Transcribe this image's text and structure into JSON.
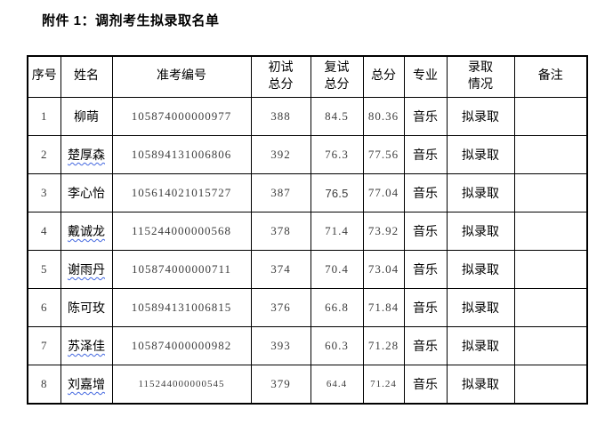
{
  "page": {
    "title": "附件 1：调剂考生拟录取名单",
    "background": "#ffffff"
  },
  "colors": {
    "misspell_underline": "#4468e0",
    "border": "#000000",
    "heading_text": "#000000",
    "number_text": "#3d3d3d"
  },
  "table": {
    "columns": [
      "序号",
      "姓名",
      "准考编号",
      "初试\n总分",
      "复试\n总分",
      "总分",
      "专业",
      "录取\n情况",
      "备注"
    ],
    "rows": [
      {
        "no": "1",
        "name": "柳萌",
        "ticket": "105874000000977",
        "initial": "388",
        "retest": "84.5",
        "total": "80.36",
        "major": "音乐",
        "status": "拟录取",
        "remark": "",
        "wavy": false
      },
      {
        "no": "2",
        "name": "楚厚森",
        "ticket": "105894131006806",
        "initial": "392",
        "retest": "76.3",
        "total": "77.56",
        "major": "音乐",
        "status": "拟录取",
        "remark": "",
        "wavy": true
      },
      {
        "no": "3",
        "name": "李心怡",
        "ticket": "105614021015727",
        "initial": "387",
        "retest": "76.5",
        "total": "77.04",
        "major": "音乐",
        "status": "拟录取",
        "remark": "",
        "wavy": false,
        "alt_cells": [
          "retest"
        ]
      },
      {
        "no": "4",
        "name": "戴诚龙",
        "ticket": "115244000000568",
        "initial": "378",
        "retest": "71.4",
        "total": "73.92",
        "major": "音乐",
        "status": "拟录取",
        "remark": "",
        "wavy": true
      },
      {
        "no": "5",
        "name": "谢雨丹",
        "ticket": "105874000000711",
        "initial": "374",
        "retest": "70.4",
        "total": "73.04",
        "major": "音乐",
        "status": "拟录取",
        "remark": "",
        "wavy": true
      },
      {
        "no": "6",
        "name": "陈可玫",
        "ticket": "105894131006815",
        "initial": "376",
        "retest": "66.8",
        "total": "71.84",
        "major": "音乐",
        "status": "拟录取",
        "remark": "",
        "wavy": false
      },
      {
        "no": "7",
        "name": "苏泽佳",
        "ticket": "105874000000982",
        "initial": "393",
        "retest": "60.3",
        "total": "71.28",
        "major": "音乐",
        "status": "拟录取",
        "remark": "",
        "wavy": true
      },
      {
        "no": "8",
        "name": "刘嘉增",
        "ticket": "115244000000545",
        "initial": "379",
        "retest": "64.4",
        "total": "71.24",
        "major": "音乐",
        "status": "拟录取",
        "remark": "",
        "wavy": true,
        "small_cells": [
          "ticket",
          "retest",
          "total"
        ]
      }
    ]
  }
}
